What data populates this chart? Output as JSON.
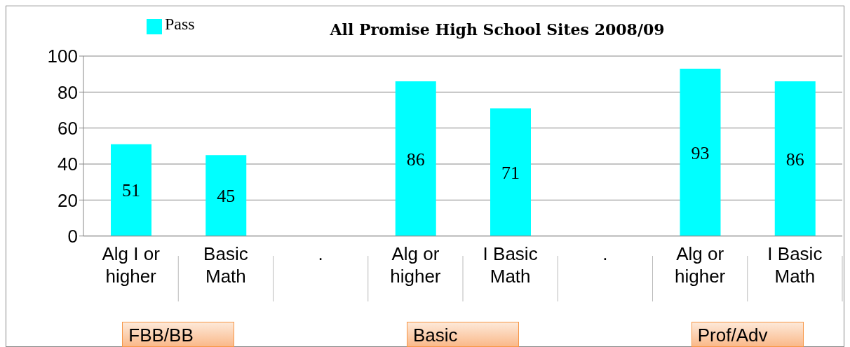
{
  "chart_data": {
    "type": "bar",
    "title": "All Promise High School Sites  2008/09",
    "categories": [
      "Alg I or higher",
      "Basic Math",
      ".",
      "Alg or higher",
      "I Basic Math",
      ".",
      "Alg or higher",
      "I Basic Math"
    ],
    "series": [
      {
        "name": "Pass",
        "color": "#00ffff",
        "values": [
          51,
          45,
          null,
          86,
          71,
          null,
          93,
          86
        ]
      }
    ],
    "ylim": [
      0,
      100
    ],
    "yticks": [
      0,
      20,
      40,
      60,
      80,
      100
    ],
    "grid": "y",
    "legend": "top left",
    "data_labels": true,
    "annotations": [
      "FBB/BB",
      "Basic",
      "Prof/Adv"
    ]
  }
}
